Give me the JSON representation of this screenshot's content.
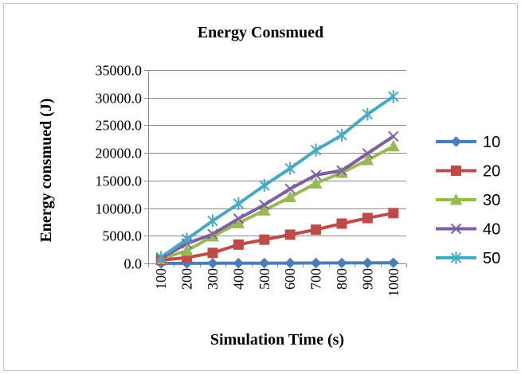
{
  "chart_data": {
    "type": "line",
    "title": "Energy Consmued",
    "xlabel": "Simulation Time (s)",
    "ylabel": "Energy consmued (J)",
    "categories": [
      "100",
      "200",
      "300",
      "400",
      "500",
      "600",
      "700",
      "800",
      "900",
      "1000"
    ],
    "ylim": [
      0,
      35000
    ],
    "y_ticks": [
      "0.0",
      "5000.0",
      "10000.0",
      "15000.0",
      "20000.0",
      "25000.0",
      "30000.0",
      "35000.0"
    ],
    "grid": "horizontal",
    "legend_position": "right",
    "series": [
      {
        "name": "10",
        "color": "#4a7ebb",
        "marker": "diamond",
        "values": [
          10,
          20,
          30,
          40,
          50,
          60,
          70,
          80,
          90,
          100
        ]
      },
      {
        "name": "20",
        "color": "#be4b48",
        "marker": "square",
        "values": [
          600,
          1050,
          1900,
          3400,
          4300,
          5200,
          6100,
          7200,
          8200,
          9100
        ]
      },
      {
        "name": "30",
        "color": "#98b954",
        "marker": "triangle",
        "values": [
          800,
          2300,
          4900,
          7300,
          9600,
          12000,
          14500,
          16400,
          18700,
          21200
        ]
      },
      {
        "name": "40",
        "color": "#7d60a0",
        "marker": "x",
        "values": [
          900,
          3600,
          5300,
          8100,
          10600,
          13500,
          16000,
          16800,
          19900,
          23000
        ]
      },
      {
        "name": "50",
        "color": "#46aac5",
        "marker": "star",
        "values": [
          1100,
          4400,
          7700,
          10800,
          14100,
          17200,
          20500,
          23200,
          27000,
          30200
        ]
      }
    ]
  }
}
